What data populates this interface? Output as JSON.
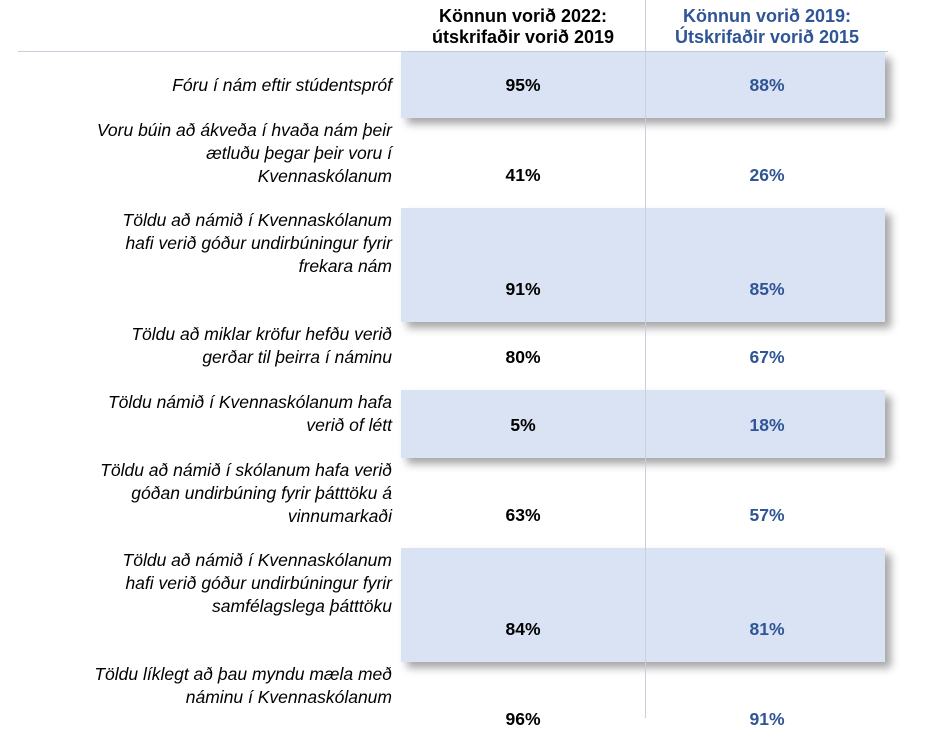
{
  "header": {
    "columns": [
      {
        "lines": [
          "Könnun vorið 2022:",
          "útskrifaðir vorið 2019"
        ]
      },
      {
        "lines": [
          "Könnun vorið 2019:",
          "Útskrifaðir vorið 2015"
        ]
      }
    ]
  },
  "table": {
    "rows": [
      {
        "label": [
          "Fóru í nám eftir stúdentspróf"
        ],
        "values": [
          "95%",
          "88%"
        ]
      },
      {
        "label": [
          "Voru búin að ákveða í hvaða nám þeir",
          "ætluðu þegar þeir voru í",
          "Kvennaskólanum"
        ],
        "values": [
          "41%",
          "26%"
        ]
      },
      {
        "label": [
          "Töldu að námið í Kvennaskólanum",
          "hafi verið góður undirbúningur fyrir",
          "frekara nám"
        ],
        "values": [
          "91%",
          "85%"
        ]
      },
      {
        "label": [
          "Töldu að miklar kröfur hefðu verið",
          "gerðar til þeirra í náminu"
        ],
        "values": [
          "80%",
          "67%"
        ]
      },
      {
        "label": [
          "Töldu námið í Kvennaskólanum hafa",
          "verið of létt"
        ],
        "values": [
          "5%",
          "18%"
        ]
      },
      {
        "label": [
          "Töldu að námið í skólanum hafa verið",
          "góðan undirbúning fyrir þátttöku á",
          "vinnumarkaði"
        ],
        "values": [
          "63%",
          "57%"
        ]
      },
      {
        "label": [
          "Töldu að námið í Kvennaskólanum",
          "hafi verið góður undirbúningur fyrir",
          "samfélagslega þátttöku"
        ],
        "values": [
          "84%",
          "81%"
        ]
      },
      {
        "label": [
          "Töldu líklegt að þau myndu mæla með",
          "náminu í Kvennaskólanum"
        ],
        "values": [
          "96%",
          "91%"
        ]
      }
    ]
  }
}
